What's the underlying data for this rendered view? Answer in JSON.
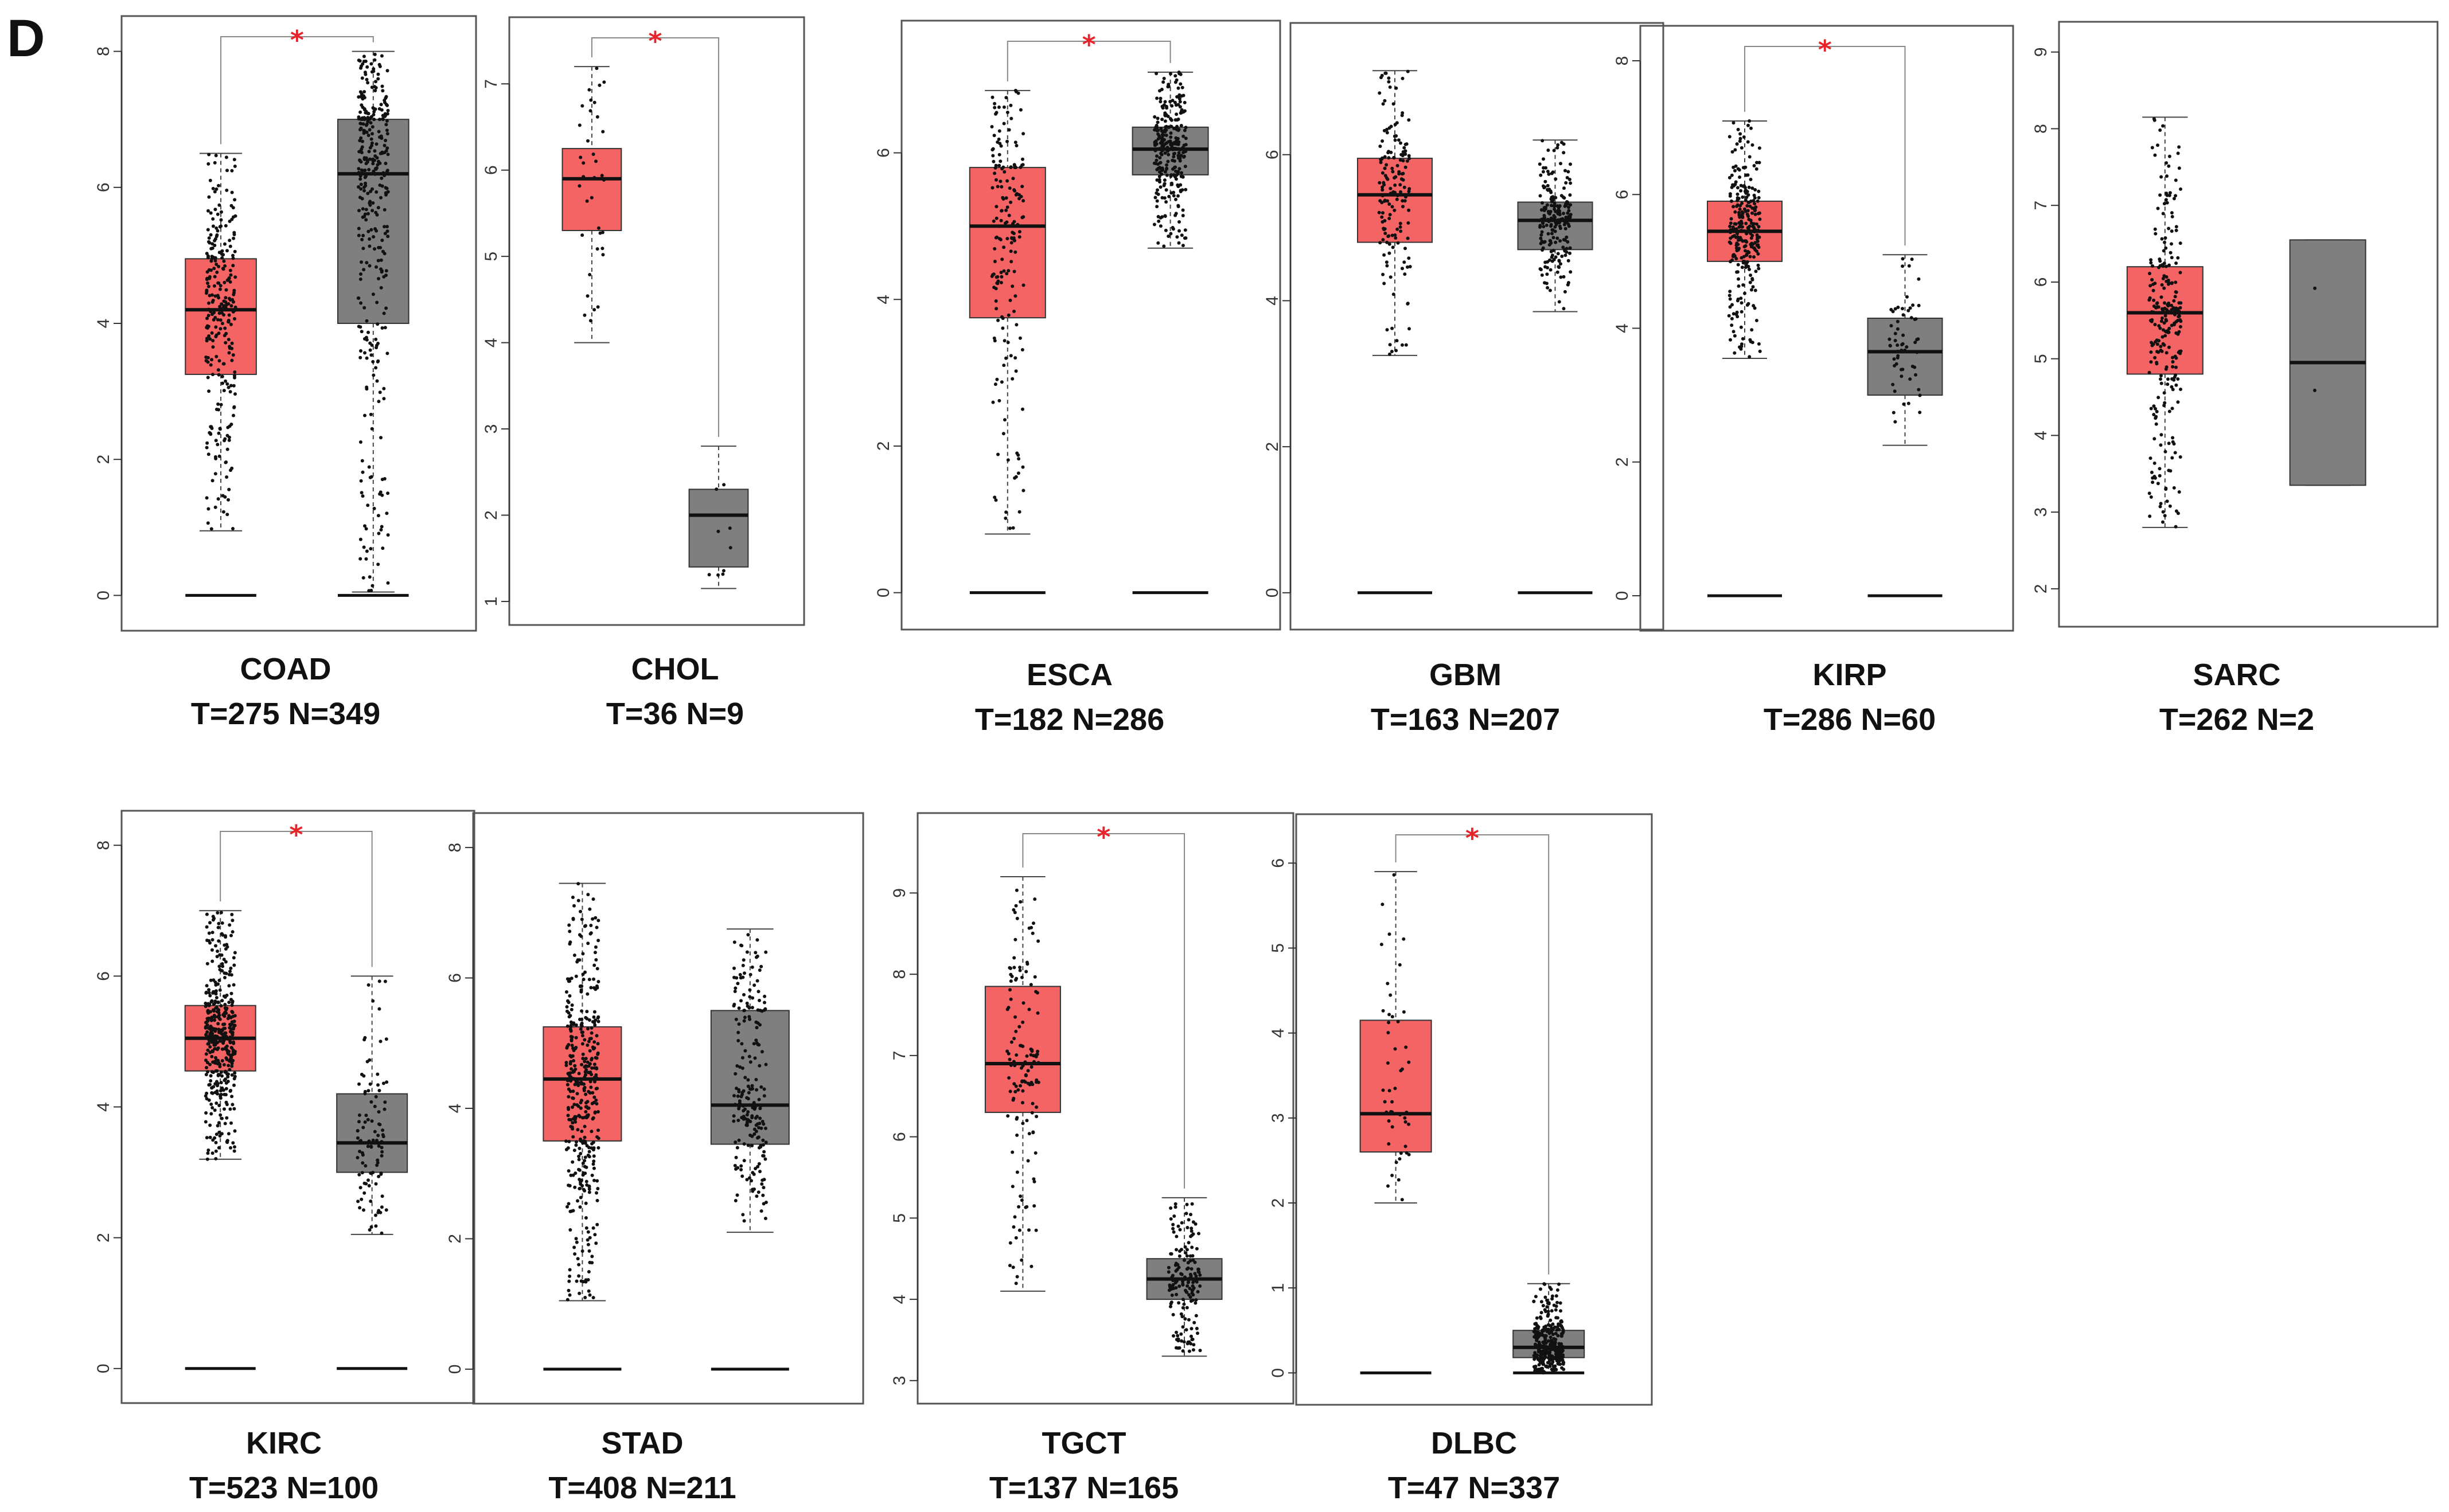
{
  "panel_letter": "D",
  "colors": {
    "tumor_box": "#f56464",
    "normal_box": "#7f7f7f",
    "points": "#111111",
    "frame": "#555555",
    "star": "#e8232a"
  },
  "chart_data": [
    {
      "type": "boxplot",
      "title": "COAD",
      "counts": "T=275 N=349",
      "ylim": [
        -0.3,
        8.3
      ],
      "yticks": [
        0,
        2,
        4,
        6,
        8
      ],
      "significant": true,
      "star": "*",
      "tumor": {
        "n": 275,
        "min": 0.95,
        "q1": 3.25,
        "median": 4.2,
        "q3": 4.95,
        "max": 6.5
      },
      "normal": {
        "n": 349,
        "min": 0.05,
        "q1": 4.0,
        "median": 6.2,
        "q3": 7.0,
        "max": 8.0
      }
    },
    {
      "type": "boxplot",
      "title": "CHOL",
      "counts": "T=36 N=9",
      "ylim": [
        0.9,
        7.6
      ],
      "yticks": [
        1,
        2,
        3,
        4,
        5,
        6,
        7
      ],
      "significant": true,
      "star": "*",
      "tumor": {
        "n": 36,
        "min": 4.0,
        "q1": 5.3,
        "median": 5.9,
        "q3": 6.25,
        "max": 7.2
      },
      "normal": {
        "n": 9,
        "min": 1.15,
        "q1": 1.4,
        "median": 2.0,
        "q3": 2.3,
        "max": 2.8
      }
    },
    {
      "type": "boxplot",
      "title": "ESCA",
      "counts": "T=182 N=286",
      "ylim": [
        -0.3,
        7.6
      ],
      "yticks": [
        0,
        2,
        4,
        6
      ],
      "significant": true,
      "star": "*",
      "tumor": {
        "n": 182,
        "min": 0.8,
        "q1": 3.75,
        "median": 5.0,
        "q3": 5.8,
        "max": 6.85
      },
      "normal": {
        "n": 286,
        "min": 4.7,
        "q1": 5.7,
        "median": 6.05,
        "q3": 6.35,
        "max": 7.1
      }
    },
    {
      "type": "boxplot",
      "title": "GBM",
      "counts": "T=163 N=207",
      "ylim": [
        -0.3,
        7.6
      ],
      "yticks": [
        0,
        2,
        4,
        6
      ],
      "significant": false,
      "star": "",
      "tumor": {
        "n": 163,
        "min": 3.25,
        "q1": 4.8,
        "median": 5.45,
        "q3": 5.95,
        "max": 7.15
      },
      "normal": {
        "n": 207,
        "min": 3.85,
        "q1": 4.7,
        "median": 5.1,
        "q3": 5.35,
        "max": 6.2
      }
    },
    {
      "type": "boxplot",
      "title": "KIRP",
      "counts": "T=286 N=60",
      "ylim": [
        -0.3,
        8.3
      ],
      "yticks": [
        0,
        2,
        4,
        6,
        8
      ],
      "significant": true,
      "star": "*",
      "tumor": {
        "n": 286,
        "min": 3.55,
        "q1": 5.0,
        "median": 5.45,
        "q3": 5.9,
        "max": 7.1
      },
      "normal": {
        "n": 60,
        "min": 2.25,
        "q1": 3.0,
        "median": 3.65,
        "q3": 4.15,
        "max": 5.1
      }
    },
    {
      "type": "boxplot",
      "title": "SARC",
      "counts": "T=262 N=2",
      "ylim": [
        1.7,
        9.2
      ],
      "yticks": [
        2,
        3,
        4,
        5,
        6,
        7,
        8,
        9
      ],
      "significant": false,
      "star": "",
      "tumor": {
        "n": 262,
        "min": 2.8,
        "q1": 4.8,
        "median": 5.6,
        "q3": 6.2,
        "max": 8.15
      },
      "normal": {
        "n": 2,
        "min": 3.35,
        "q1": 3.35,
        "median": 4.95,
        "q3": 6.55,
        "max": 6.55
      }
    },
    {
      "type": "boxplot",
      "title": "KIRC",
      "counts": "T=523 N=100",
      "ylim": [
        -0.3,
        8.3
      ],
      "yticks": [
        0,
        2,
        4,
        6,
        8
      ],
      "significant": true,
      "star": "*",
      "tumor": {
        "n": 523,
        "min": 3.2,
        "q1": 4.55,
        "median": 5.05,
        "q3": 5.55,
        "max": 7.0
      },
      "normal": {
        "n": 100,
        "min": 2.05,
        "q1": 3.0,
        "median": 3.45,
        "q3": 4.2,
        "max": 6.0
      }
    },
    {
      "type": "boxplot",
      "title": "STAD",
      "counts": "T=408 N=211",
      "ylim": [
        -0.3,
        8.3
      ],
      "yticks": [
        0,
        2,
        4,
        6,
        8
      ],
      "significant": false,
      "star": "",
      "tumor": {
        "n": 408,
        "min": 1.05,
        "q1": 3.5,
        "median": 4.45,
        "q3": 5.25,
        "max": 7.45
      },
      "normal": {
        "n": 211,
        "min": 2.1,
        "q1": 3.45,
        "median": 4.05,
        "q3": 5.5,
        "max": 6.75
      }
    },
    {
      "type": "boxplot",
      "title": "TGCT",
      "counts": "T=137 N=165",
      "ylim": [
        2.9,
        9.8
      ],
      "yticks": [
        3,
        4,
        5,
        6,
        7,
        8,
        9
      ],
      "significant": true,
      "star": "*",
      "tumor": {
        "n": 137,
        "min": 4.1,
        "q1": 6.3,
        "median": 6.9,
        "q3": 7.85,
        "max": 9.2
      },
      "normal": {
        "n": 165,
        "min": 3.3,
        "q1": 4.0,
        "median": 4.25,
        "q3": 4.5,
        "max": 5.25
      }
    },
    {
      "type": "boxplot",
      "title": "DLBC",
      "counts": "T=47 N=337",
      "ylim": [
        -0.2,
        6.4
      ],
      "yticks": [
        0,
        1,
        2,
        3,
        4,
        5,
        6
      ],
      "significant": true,
      "star": "*",
      "tumor": {
        "n": 47,
        "min": 2.0,
        "q1": 2.6,
        "median": 3.05,
        "q3": 4.15,
        "max": 5.9
      },
      "normal": {
        "n": 337,
        "min": 0.0,
        "q1": 0.18,
        "median": 0.3,
        "q3": 0.5,
        "max": 1.05
      }
    }
  ]
}
